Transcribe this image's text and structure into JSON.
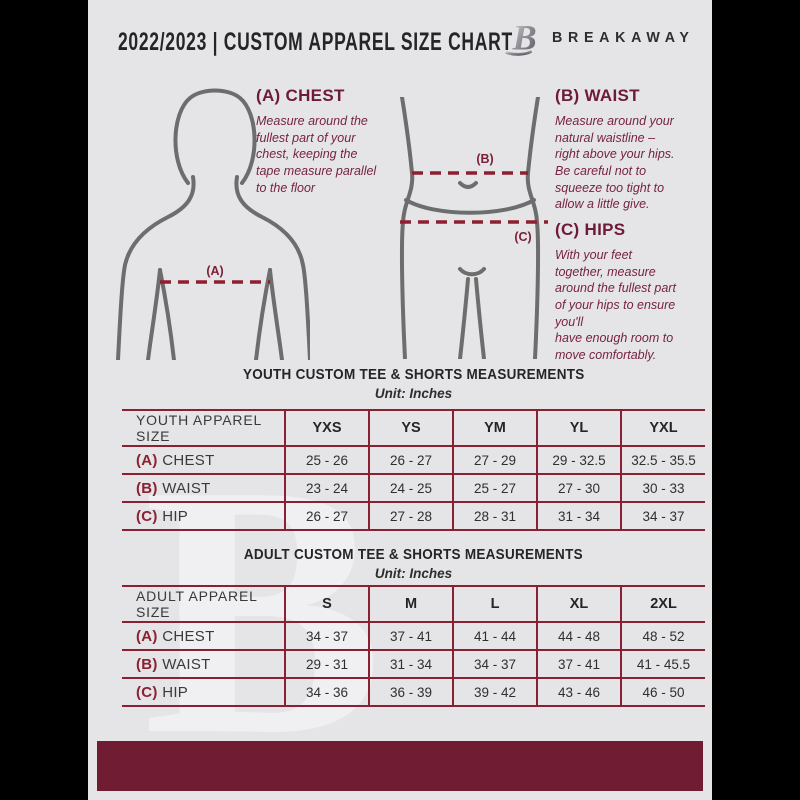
{
  "header": {
    "title": "2022/2023 | CUSTOM APPAREL SIZE CHART",
    "brand": "BREAKAWAY",
    "logo_letter": "B"
  },
  "diagram": {
    "chest_label": "(A)",
    "waist_label": "(B)",
    "hips_label": "(C)"
  },
  "instructions": [
    {
      "heading": "(A) CHEST",
      "body": "Measure around the\nfullest part of your\nchest, keeping the\ntape measure parallel\nto the floor"
    },
    {
      "heading": "(B) WAIST",
      "body": "Measure around your\nnatural waistline –\nright above your hips.\nBe careful not to\nsqueeze too tight to\nallow a little give."
    },
    {
      "heading": "(C) HIPS",
      "body": "With your feet\ntogether, measure\naround the fullest part\nof your hips to ensure\nyou'll\nhave enough room to\nmove comfortably."
    }
  ],
  "youth_table": {
    "title": "YOUTH CUSTOM TEE & SHORTS MEASUREMENTS",
    "unit": "Unit: Inches",
    "header": [
      "YOUTH APPAREL SIZE",
      "YXS",
      "YS",
      "YM",
      "YL",
      "YXL"
    ],
    "rows": [
      {
        "prefix": "(A)",
        "label": "CHEST",
        "values": [
          "25 - 26",
          "26 - 27",
          "27 - 29",
          "29 - 32.5",
          "32.5 - 35.5"
        ]
      },
      {
        "prefix": "(B)",
        "label": "WAIST",
        "values": [
          "23 - 24",
          "24 - 25",
          "25 - 27",
          "27 - 30",
          "30 - 33"
        ]
      },
      {
        "prefix": "(C)",
        "label": "HIP",
        "values": [
          "26 - 27",
          "27 - 28",
          "28 - 31",
          "31 - 34",
          "34 - 37"
        ]
      }
    ]
  },
  "adult_table": {
    "title": "ADULT CUSTOM TEE & SHORTS MEASUREMENTS",
    "unit": "Unit: Inches",
    "header": [
      "ADULT APPAREL SIZE",
      "S",
      "M",
      "L",
      "XL",
      "2XL"
    ],
    "rows": [
      {
        "prefix": "(A)",
        "label": "CHEST",
        "values": [
          "34 - 37",
          "37 - 41",
          "41 - 44",
          "44 - 48",
          "48 - 52"
        ]
      },
      {
        "prefix": "(B)",
        "label": "WAIST",
        "values": [
          "29 - 31",
          "31 - 34",
          "34 - 37",
          "37 - 41",
          "41 - 45.5"
        ]
      },
      {
        "prefix": "(C)",
        "label": "HIP",
        "values": [
          "34 - 36",
          "36 - 39",
          "39 - 42",
          "43 - 46",
          "46 - 50"
        ]
      }
    ]
  },
  "watermark": "B",
  "colors": {
    "accent_maroon": "#6e1b37",
    "table_border": "#8a2133",
    "dashed_line": "#8e1f31",
    "footer_bar": "#701c33",
    "page_background": "#e5e4e7",
    "body_outline": "#6d6d6d"
  }
}
